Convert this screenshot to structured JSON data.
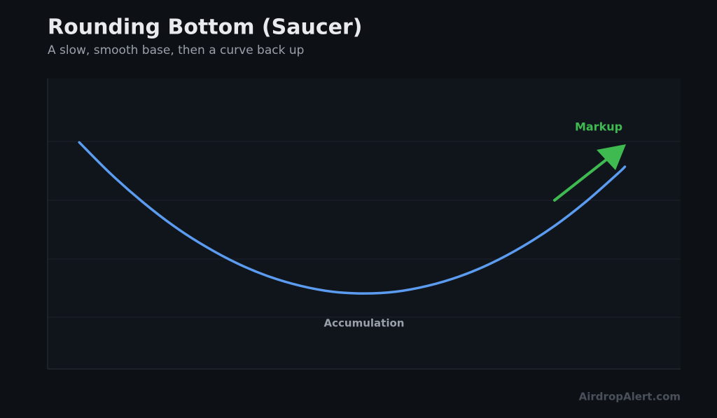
{
  "chart_data": {
    "type": "line",
    "title": "Rounding Bottom (Saucer)",
    "subtitle": "A slow, smooth base, then a curve back up",
    "x": [
      5,
      10,
      15,
      20,
      25,
      30,
      35,
      40,
      45,
      50,
      55,
      60,
      65,
      70,
      75,
      80,
      85,
      90,
      91.2
    ],
    "series": [
      {
        "color": "#5b9cf0",
        "values": [
          78.0,
          67.1,
          57.5,
          49.1,
          42.1,
          36.3,
          31.8,
          28.6,
          26.6,
          26.0,
          26.6,
          28.6,
          31.8,
          36.3,
          42.1,
          49.1,
          57.5,
          67.1,
          69.6
        ]
      }
    ],
    "xlim": [
      0,
      100
    ],
    "ylim": [
      0,
      100
    ],
    "annotations": [
      "Markup",
      "Accumulation"
    ],
    "footer": "AirdropAlert.com"
  }
}
